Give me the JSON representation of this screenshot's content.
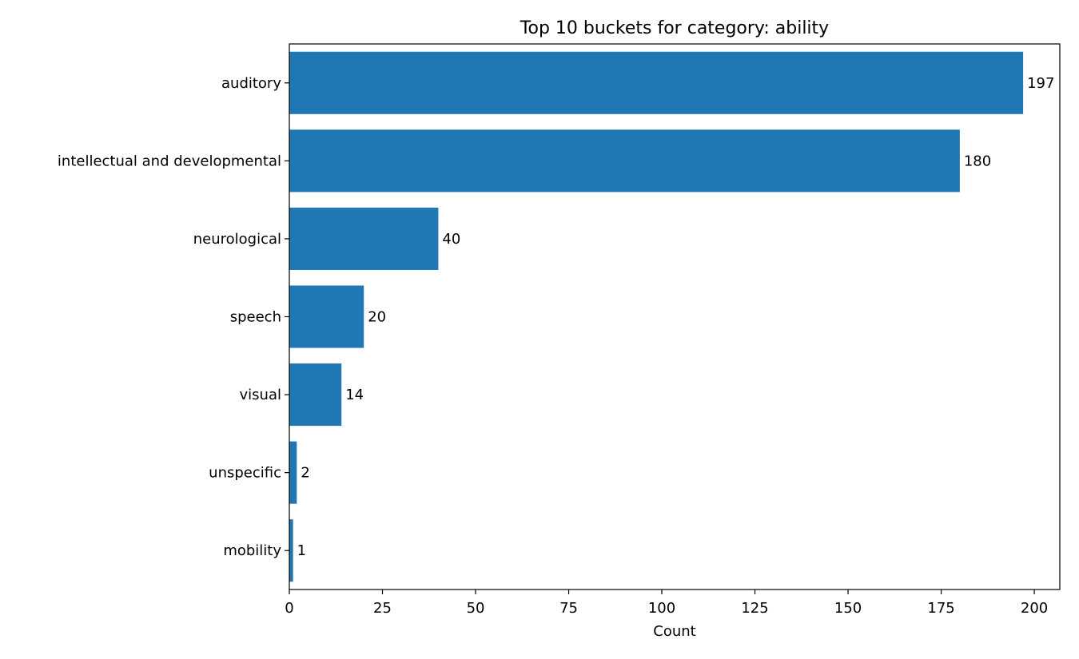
{
  "chart_data": {
    "type": "bar",
    "orientation": "horizontal",
    "title": "Top 10 buckets for category: ability",
    "xlabel": "Count",
    "ylabel": "",
    "categories": [
      "auditory",
      "intellectual and developmental",
      "neurological",
      "speech",
      "visual",
      "unspecific",
      "mobility"
    ],
    "values": [
      197,
      180,
      40,
      20,
      14,
      2,
      1
    ],
    "data_labels": [
      "197",
      "180",
      "40",
      "20",
      "14",
      "2",
      "1"
    ],
    "xlim": [
      0,
      206.85
    ],
    "xticks": [
      0,
      25,
      50,
      75,
      100,
      125,
      150,
      175,
      200
    ],
    "xtick_labels": [
      "0",
      "25",
      "50",
      "75",
      "100",
      "125",
      "150",
      "175",
      "200"
    ],
    "grid": false,
    "bar_color": "#1f77b4"
  }
}
